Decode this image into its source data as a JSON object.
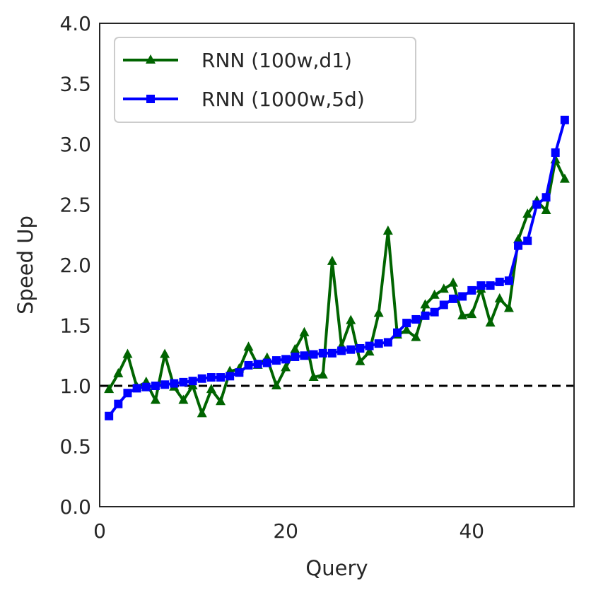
{
  "chart_data": {
    "type": "line",
    "xlabel": "Query",
    "ylabel": "Speed Up",
    "xlim": [
      0,
      51
    ],
    "ylim": [
      0.0,
      4.0
    ],
    "xticks": [
      0,
      20,
      40
    ],
    "yticks": [
      0.0,
      0.5,
      1.0,
      1.5,
      2.0,
      2.5,
      3.0,
      3.5,
      4.0
    ],
    "ytick_labels": [
      "0.0",
      "0.5",
      "1.0",
      "1.5",
      "2.0",
      "2.5",
      "3.0",
      "3.5",
      "4.0"
    ],
    "grid": false,
    "legend_position": "top-left",
    "reference_line": {
      "y": 1.0,
      "style": "dashed",
      "color": "#000000"
    },
    "series": [
      {
        "name": "RNN (100w,d1)",
        "color": "#006400",
        "marker": "triangle",
        "x": [
          1,
          2,
          3,
          4,
          5,
          6,
          7,
          8,
          9,
          10,
          11,
          12,
          13,
          14,
          15,
          16,
          17,
          18,
          19,
          20,
          21,
          22,
          23,
          24,
          25,
          26,
          27,
          28,
          29,
          30,
          31,
          32,
          33,
          34,
          35,
          36,
          37,
          38,
          39,
          40,
          41,
          42,
          43,
          44,
          45,
          46,
          47,
          48,
          49,
          50
        ],
        "values": [
          0.97,
          1.1,
          1.26,
          0.99,
          1.03,
          0.88,
          1.26,
          0.99,
          0.88,
          1.0,
          0.77,
          0.97,
          0.87,
          1.12,
          1.14,
          1.32,
          1.17,
          1.23,
          1.0,
          1.15,
          1.3,
          1.44,
          1.07,
          1.09,
          2.03,
          1.33,
          1.54,
          1.2,
          1.28,
          1.6,
          2.28,
          1.42,
          1.46,
          1.4,
          1.67,
          1.75,
          1.8,
          1.85,
          1.58,
          1.59,
          1.8,
          1.52,
          1.72,
          1.64,
          2.21,
          2.42,
          2.53,
          2.45,
          2.87,
          2.71
        ]
      },
      {
        "name": "RNN (1000w,5d)",
        "color": "#0000ff",
        "marker": "square",
        "x": [
          1,
          2,
          3,
          4,
          5,
          6,
          7,
          8,
          9,
          10,
          11,
          12,
          13,
          14,
          15,
          16,
          17,
          18,
          19,
          20,
          21,
          22,
          23,
          24,
          25,
          26,
          27,
          28,
          29,
          30,
          31,
          32,
          33,
          34,
          35,
          36,
          37,
          38,
          39,
          40,
          41,
          42,
          43,
          44,
          45,
          46,
          47,
          48,
          49,
          50
        ],
        "values": [
          0.75,
          0.85,
          0.94,
          0.98,
          0.99,
          1.0,
          1.01,
          1.02,
          1.03,
          1.04,
          1.06,
          1.07,
          1.07,
          1.08,
          1.11,
          1.17,
          1.18,
          1.19,
          1.21,
          1.22,
          1.24,
          1.25,
          1.26,
          1.27,
          1.27,
          1.29,
          1.3,
          1.31,
          1.33,
          1.35,
          1.36,
          1.44,
          1.52,
          1.55,
          1.58,
          1.61,
          1.67,
          1.72,
          1.74,
          1.79,
          1.83,
          1.83,
          1.86,
          1.87,
          2.16,
          2.2,
          2.5,
          2.56,
          2.93,
          3.2
        ]
      }
    ]
  }
}
